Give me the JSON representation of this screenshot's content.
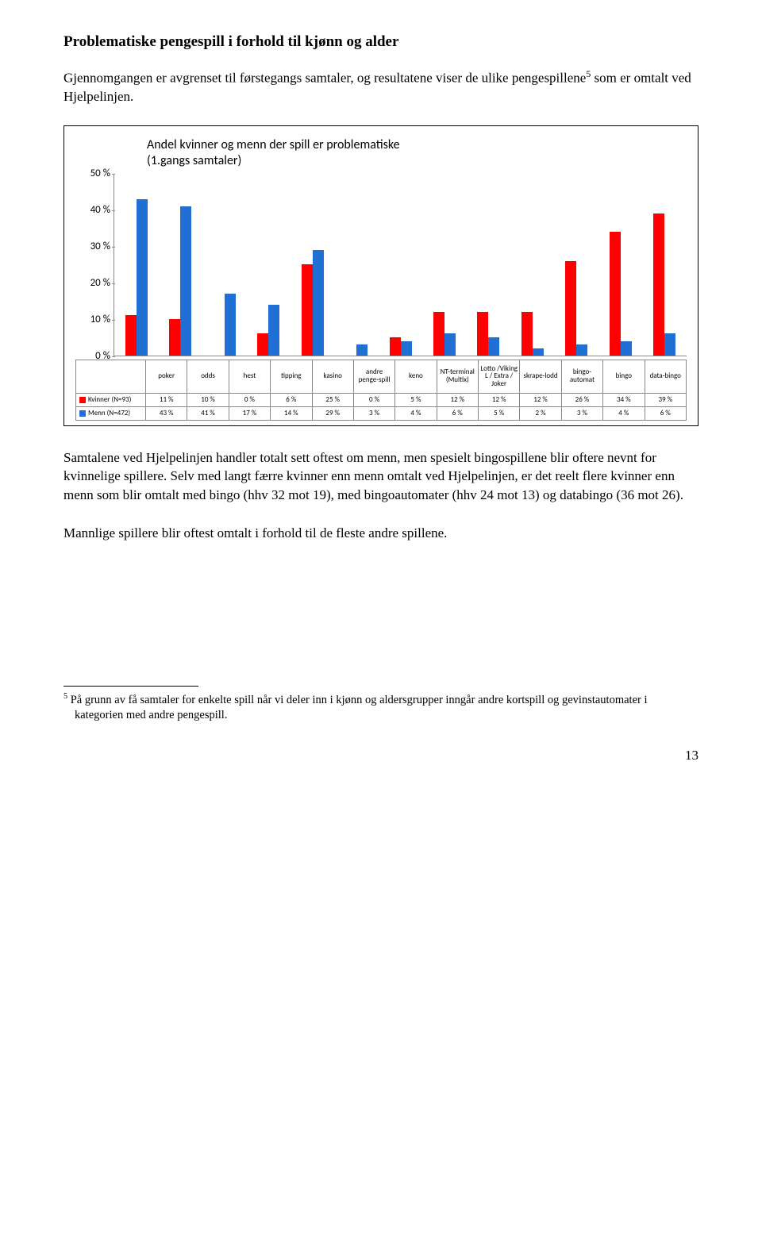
{
  "heading": "Problematiske pengespill i forhold til kjønn og alder",
  "intro_part1": "Gjennomgangen er avgrenset til førstegangs samtaler, og resultatene viser de ulike pengespillene",
  "intro_sup": "5",
  "intro_part2": " som er omtalt ved Hjelpelinjen.",
  "chart": {
    "title_line1": "Andel kvinner og menn der spill er problematiske",
    "title_line2": "(1.gangs samtaler)",
    "ylim_max": 50,
    "ytick_step": 10,
    "y_ticks": [
      "50 %",
      "40 %",
      "30 %",
      "20 %",
      "10 %",
      "0 %"
    ],
    "categories": [
      "poker",
      "odds",
      "hest",
      "tipping",
      "kasino",
      "andre penge-spill",
      "keno",
      "NT-terminal (Multix)",
      "Lotto /Viking L / Extra / Joker",
      "skrape-lodd",
      "bingo-automat",
      "bingo",
      "data-bingo"
    ],
    "series": [
      {
        "name": "Kvinner (N=93)",
        "color": "#ff0000",
        "values_pct": [
          11,
          10,
          0,
          6,
          25,
          0,
          5,
          12,
          12,
          12,
          26,
          34,
          39
        ],
        "labels": [
          "11 %",
          "10 %",
          "0 %",
          "6 %",
          "25 %",
          "0 %",
          "5 %",
          "12 %",
          "12 %",
          "12 %",
          "26 %",
          "34 %",
          "39 %"
        ]
      },
      {
        "name": "Menn (N=472)",
        "color": "#1f6fd4",
        "values_pct": [
          43,
          41,
          17,
          14,
          29,
          3,
          4,
          6,
          5,
          2,
          3,
          4,
          6
        ],
        "labels": [
          "43 %",
          "41 %",
          "17 %",
          "14 %",
          "29 %",
          "3 %",
          "4 %",
          "6 %",
          "5 %",
          "2 %",
          "3 %",
          "4 %",
          "6 %"
        ]
      }
    ]
  },
  "para2": "Samtalene ved Hjelpelinjen handler totalt sett oftest om menn, men spesielt bingospillene blir oftere nevnt for kvinnelige spillere. Selv med langt færre kvinner enn menn omtalt ved Hjelpelinjen, er det reelt flere kvinner enn menn som blir omtalt med bingo (hhv 32 mot 19), med bingoautomater (hhv 24 mot 13) og databingo (36 mot 26).",
  "para3": "Mannlige spillere blir oftest omtalt i forhold til de fleste andre spillene.",
  "footnote_num": "5",
  "footnote_text": " På grunn av få samtaler for enkelte spill når vi deler inn i kjønn og aldersgrupper inngår andre kortspill og gevinstautomater i kategorien med andre pengespill.",
  "page_number": "13"
}
